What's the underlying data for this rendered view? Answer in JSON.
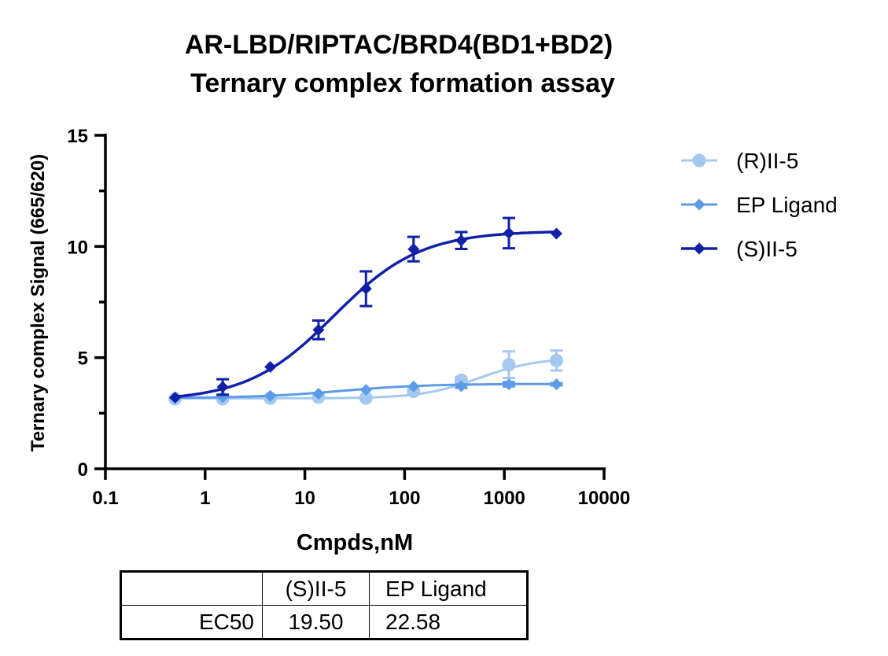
{
  "chart_data": {
    "type": "scatter",
    "title": [
      "AR-LBD/RIPTAC/BRD4(BD1+BD2)",
      "Ternary complex formation assay"
    ],
    "xlabel": "Cmpds,nM",
    "ylabel": "Ternary complex Signal (665/620)",
    "xscale": "log",
    "xlim": [
      0.1,
      10000
    ],
    "ylim": [
      0,
      15
    ],
    "xticks": [
      0.1,
      1,
      10,
      100,
      1000,
      10000
    ],
    "xtick_labels": [
      "0.1",
      "1",
      "10",
      "100",
      "1000",
      "10000"
    ],
    "yticks": [
      0,
      5,
      10,
      15
    ],
    "ytick_labels": [
      "0",
      "5",
      "10",
      "15"
    ],
    "grid": false,
    "legend_position": "right",
    "series": [
      {
        "name": "(R)II-5",
        "color": "#a3c8f2",
        "marker": "circle",
        "x": [
          0.5,
          1.5,
          4.5,
          13.7,
          41,
          123,
          370,
          1111,
          3333
        ],
        "y": [
          3.15,
          3.15,
          3.18,
          3.22,
          3.18,
          3.48,
          3.98,
          4.68,
          4.87
        ],
        "err": [
          0,
          0,
          0,
          0,
          0,
          0.1,
          0.15,
          0.6,
          0.45
        ],
        "fit": {
          "bottom": 3.17,
          "top": 5.0,
          "logEC50": 2.75,
          "hill": 1.5
        }
      },
      {
        "name": "EP Ligand",
        "color": "#5b9be8",
        "marker": "diamond",
        "x": [
          0.5,
          1.5,
          4.5,
          13.7,
          41,
          123,
          370,
          1111,
          3333
        ],
        "y": [
          3.2,
          3.22,
          3.28,
          3.38,
          3.55,
          3.7,
          3.72,
          3.8,
          3.8
        ],
        "err": [
          0,
          0,
          0,
          0,
          0,
          0,
          0.08,
          0.1,
          0.05
        ],
        "fit": {
          "bottom": 3.18,
          "top": 3.82,
          "logEC50": 1.354,
          "hill": 1.0
        }
      },
      {
        "name": "(S)II-5",
        "color": "#1020a8",
        "marker": "diamond",
        "x": [
          0.5,
          1.5,
          4.5,
          13.7,
          41,
          123,
          370,
          1111,
          3333
        ],
        "y": [
          3.2,
          3.68,
          4.58,
          6.25,
          8.1,
          9.88,
          10.27,
          10.6,
          10.58
        ],
        "err": [
          0,
          0.35,
          0,
          0.42,
          0.78,
          0.55,
          0.38,
          0.68,
          0
        ],
        "fit": {
          "bottom": 3.05,
          "top": 10.7,
          "logEC50": 1.29,
          "hill": 1.0
        }
      }
    ],
    "table": {
      "headers": [
        "",
        "(S)II-5",
        "EP Ligand"
      ],
      "rows": [
        [
          "EC50",
          "19.50",
          "22.58"
        ]
      ]
    }
  }
}
